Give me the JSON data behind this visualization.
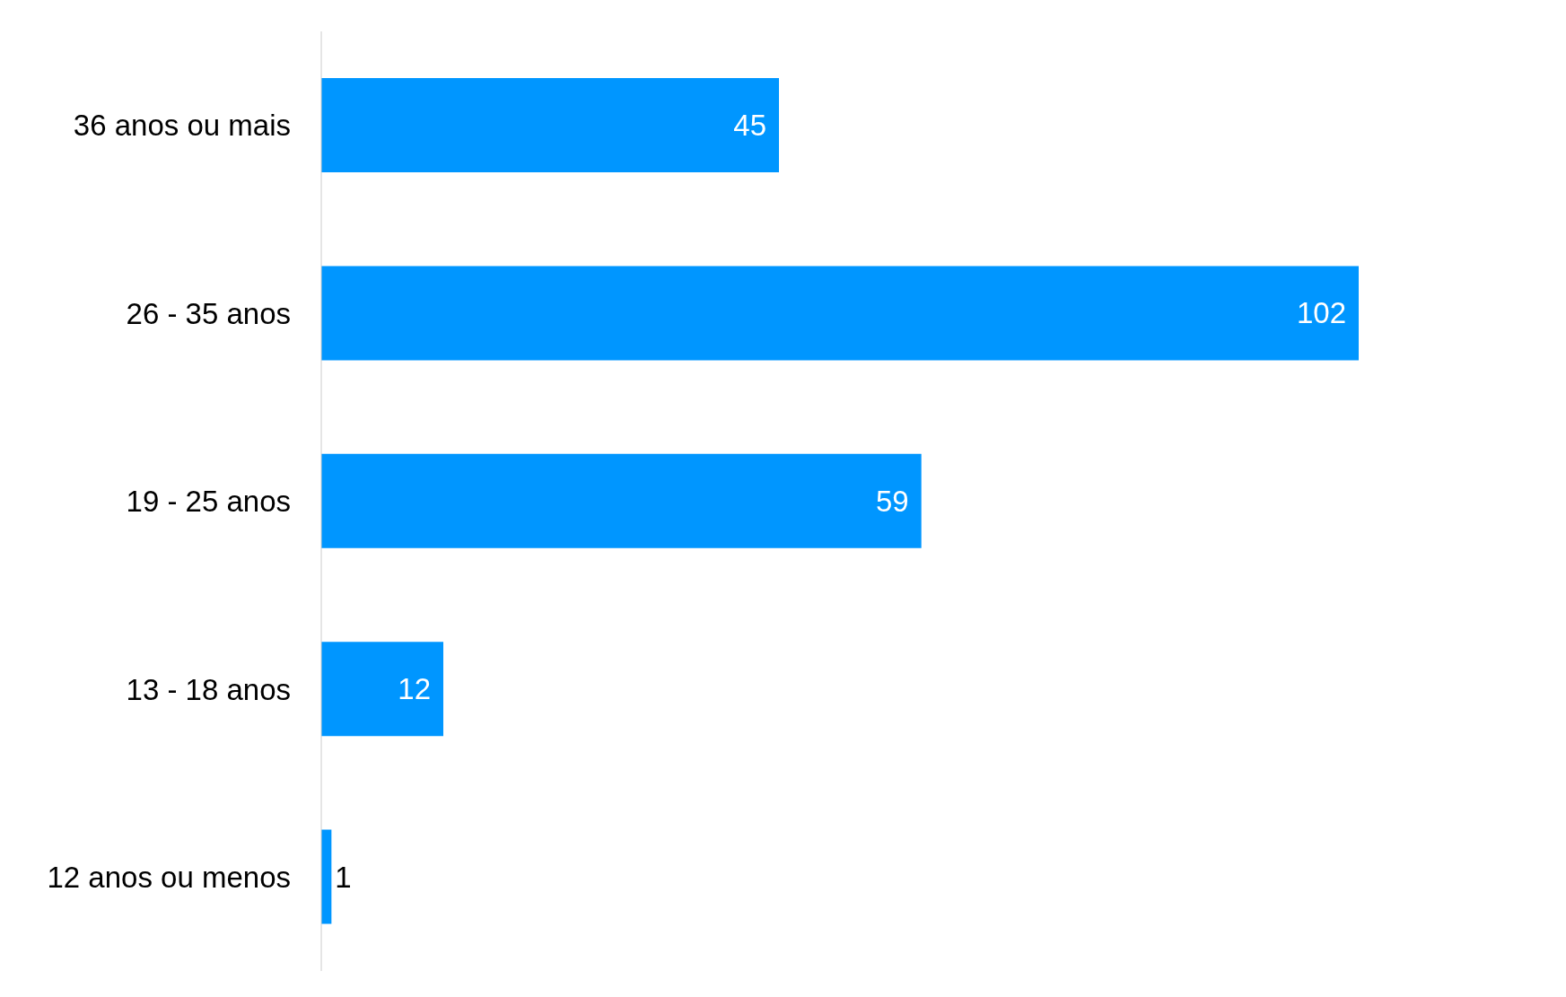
{
  "chart_data": {
    "type": "bar",
    "orientation": "horizontal",
    "categories": [
      "36 anos ou mais",
      "26 - 35 anos",
      "19 - 25 anos",
      "13 - 18 anos",
      "12 anos ou menos"
    ],
    "values": [
      45,
      102,
      59,
      12,
      1
    ],
    "color": "#0096ff",
    "data_labels": true
  }
}
